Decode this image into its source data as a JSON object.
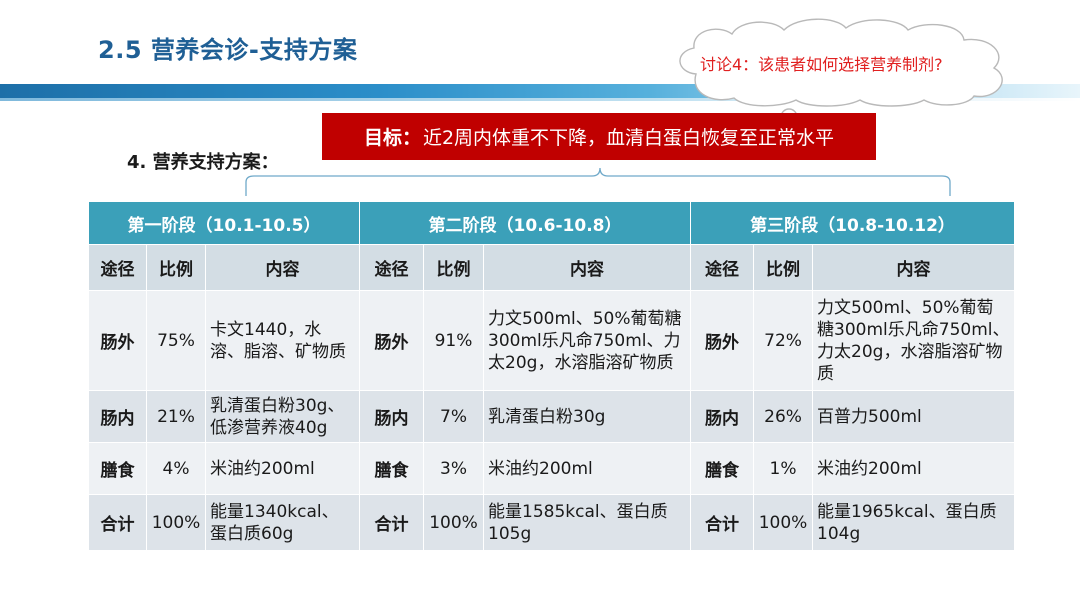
{
  "title": "2.5 营养会诊-支持方案",
  "discussion": "讨论4：该患者如何选择营养制剂?",
  "goal": {
    "label": "目标：",
    "text": "近2周内体重不下降，血清白蛋白恢复至正常水平"
  },
  "section_label": "4. 营养支持方案：",
  "table": {
    "phases": [
      "第一阶段（10.1-10.5）",
      "第二阶段（10.6-10.8）",
      "第三阶段（10.8-10.12）"
    ],
    "columns": [
      "途径",
      "比例",
      "内容"
    ],
    "rows": [
      [
        {
          "route": "肠外",
          "ratio": "75%",
          "content": "卡文1440，水溶、脂溶、矿物质"
        },
        {
          "route": "肠外",
          "ratio": "91%",
          "content": "力文500ml、50%葡萄糖300ml乐凡命750ml、力太20g，水溶脂溶矿物质"
        },
        {
          "route": "肠外",
          "ratio": "72%",
          "content": "力文500ml、50%葡萄糖300ml乐凡命750ml、力太20g，水溶脂溶矿物质"
        }
      ],
      [
        {
          "route": "肠内",
          "ratio": "21%",
          "content": "乳清蛋白粉30g、低渗营养液40g"
        },
        {
          "route": "肠内",
          "ratio": "7%",
          "content": "乳清蛋白粉30g"
        },
        {
          "route": "肠内",
          "ratio": "26%",
          "content": "百普力500ml"
        }
      ],
      [
        {
          "route": "膳食",
          "ratio": "4%",
          "content": "米油约200ml"
        },
        {
          "route": "膳食",
          "ratio": "3%",
          "content": "米油约200ml"
        },
        {
          "route": "膳食",
          "ratio": "1%",
          "content": "米油约200ml"
        }
      ],
      [
        {
          "route": "合计",
          "ratio": "100%",
          "content": "能量1340kcal、蛋白质60g"
        },
        {
          "route": "合计",
          "ratio": "100%",
          "content": "能量1585kcal、蛋白质105g"
        },
        {
          "route": "合计",
          "ratio": "100%",
          "content": "能量1965kcal、蛋白质104g"
        }
      ]
    ]
  },
  "colors": {
    "title": "#1f5f95",
    "goal_bg": "#c00000",
    "phase_header": "#3ba0b9",
    "discussion_text": "#e02020"
  }
}
